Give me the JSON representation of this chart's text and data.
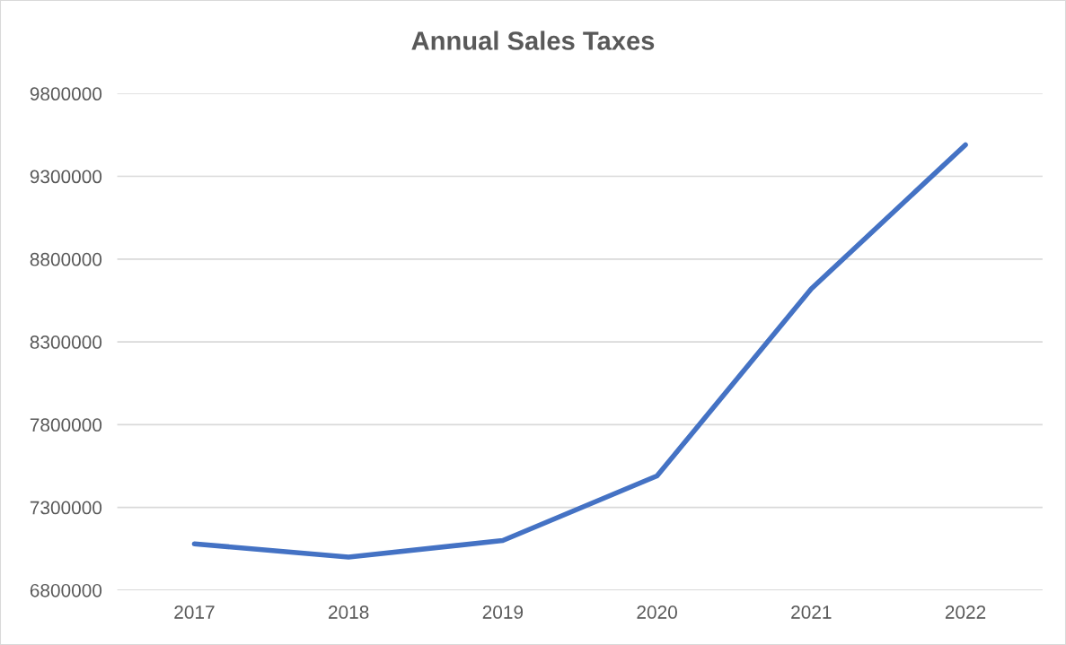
{
  "chart_data": {
    "type": "line",
    "title": "Annual Sales Taxes",
    "categories": [
      "2017",
      "2018",
      "2019",
      "2020",
      "2021",
      "2022"
    ],
    "series": [
      {
        "color": "#4472c4",
        "values": [
          7080000,
          7000000,
          7100000,
          7490000,
          8620000,
          9490000
        ]
      }
    ],
    "ylim": [
      6800000,
      9800000
    ],
    "yticks": [
      6800000,
      7300000,
      7800000,
      8300000,
      8800000,
      9300000,
      9800000
    ],
    "grid": "y",
    "marker": "none",
    "line_style": "solid",
    "legend": false
  }
}
